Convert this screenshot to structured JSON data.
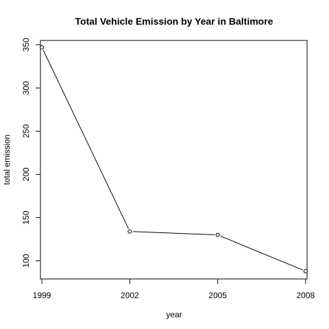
{
  "chart_data": {
    "type": "line",
    "title": "Total Vehicle Emission by Year in Baltimore",
    "xlabel": "year",
    "ylabel": "total emission",
    "x": [
      1999,
      2002,
      2005,
      2008
    ],
    "xticks": [
      "1999",
      "2002",
      "2005",
      "2008"
    ],
    "yticks": [
      100,
      150,
      200,
      250,
      300,
      350
    ],
    "series": [
      {
        "values": [
          347,
          134,
          130,
          88
        ]
      }
    ],
    "xlim": [
      1998.95,
      2008.05
    ],
    "ylim": [
      79,
      355
    ],
    "grid": false,
    "markers": "open-circle",
    "colors": {
      "line": "#000000",
      "axis": "#000000",
      "marker_fill": "#ffffff"
    }
  }
}
